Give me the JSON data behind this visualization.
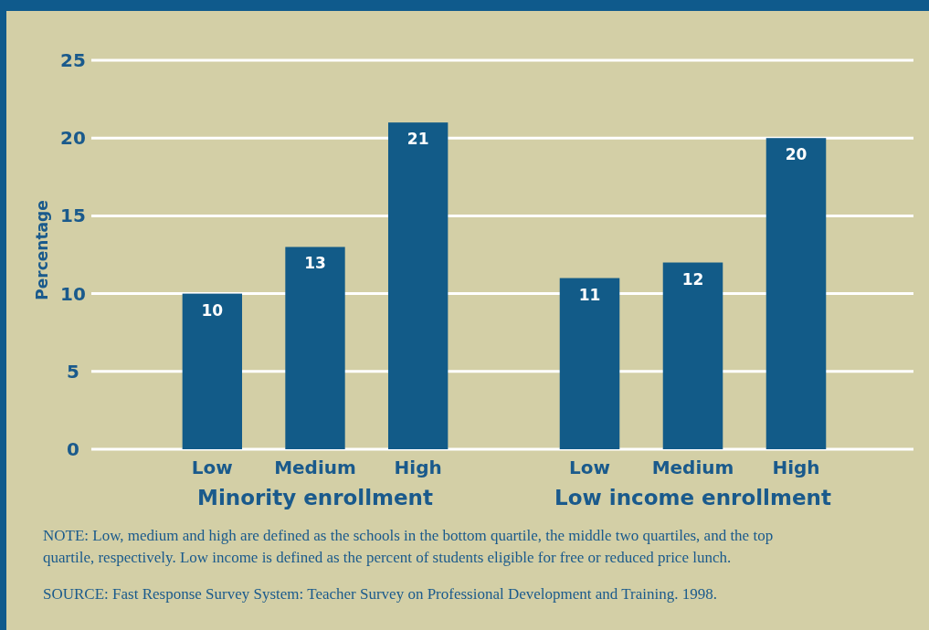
{
  "chart_data": [
    {
      "type": "bar",
      "xlabel": "Minority enrollment",
      "ylabel": "Percentage",
      "categories": [
        "Low",
        "Medium",
        "High"
      ],
      "values": [
        10,
        13,
        21
      ],
      "color": "#125b88",
      "ylim": [
        0,
        25
      ],
      "yticks": [
        0,
        5,
        10,
        15,
        20,
        25
      ],
      "grid": "y",
      "data_labels": true,
      "annotations": [
        "NOTE: Low, medium and high are defined as the schools in the bottom quartile, the middle two quartiles, and the top quartile, respectively. Low income is defined as the percent of students eligible for free or reduced price lunch.",
        "SOURCE: Fast Response Survey System: Teacher Survey on Professional Development and Training. 1998."
      ]
    },
    {
      "type": "bar",
      "xlabel": "Low income enrollment",
      "categories": [
        "Low",
        "Medium",
        "High"
      ],
      "values": [
        11,
        12,
        20
      ],
      "color": "#125b88",
      "ylim": [
        0,
        25
      ],
      "yticks": [
        0,
        5,
        10,
        15,
        20,
        25
      ],
      "grid": "y",
      "data_labels": true,
      "tick_labels": "x"
    }
  ]
}
